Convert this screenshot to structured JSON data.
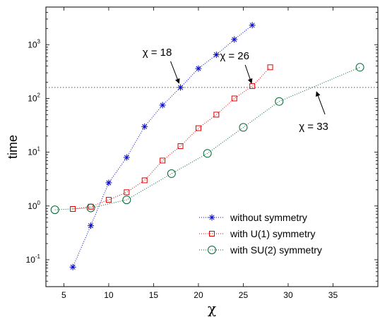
{
  "chart_data": {
    "type": "scatter",
    "xlabel": "χ",
    "ylabel": "time",
    "xlim": [
      3,
      40
    ],
    "ylim_log10": [
      -1.5,
      3.7
    ],
    "yscale": "log",
    "grid": false,
    "legend_position": "bottom-right",
    "x_ticks": [
      5,
      10,
      15,
      20,
      25,
      30,
      35
    ],
    "y_tick_exponents": [
      -1,
      0,
      1,
      2,
      3
    ],
    "reference_line_y": 160,
    "series": [
      {
        "name": "without symmetry",
        "marker": "asterisk",
        "color": "#0000cc",
        "x": [
          6,
          8,
          10,
          12,
          14,
          16,
          18,
          20,
          22,
          24,
          26
        ],
        "y": [
          0.073,
          0.43,
          2.7,
          8,
          30,
          75,
          160,
          360,
          650,
          1250,
          2300
        ]
      },
      {
        "name": "with U(1) symmetry",
        "marker": "square",
        "color": "#e00000",
        "x": [
          6,
          8,
          10,
          12,
          14,
          16,
          18,
          20,
          22,
          24,
          26,
          28
        ],
        "y": [
          0.88,
          0.97,
          1.3,
          1.8,
          3.0,
          7.0,
          13,
          28,
          50,
          100,
          170,
          380
        ]
      },
      {
        "name": "with SU(2) symmetry",
        "marker": "circle",
        "color": "#006633",
        "x": [
          4,
          8,
          12,
          17,
          21,
          25,
          29,
          38
        ],
        "y": [
          0.85,
          0.92,
          1.3,
          4.0,
          9.5,
          29,
          88,
          380
        ]
      }
    ],
    "annotations": [
      {
        "text": "χ = 18",
        "x": 18,
        "y": 160
      },
      {
        "text": "χ = 26",
        "x": 26,
        "y": 160
      },
      {
        "text": "χ = 33",
        "x": 33,
        "y": 160
      }
    ]
  }
}
